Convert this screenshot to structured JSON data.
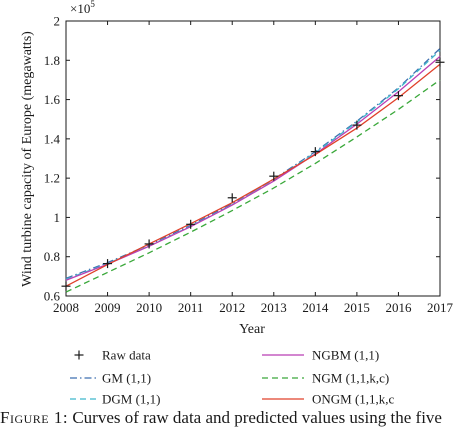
{
  "chart_data": {
    "type": "line",
    "xlabel": "Year",
    "ylabel": "Wind turbine capacity of Europe (megawatts)",
    "y_exponent_label": "×10",
    "y_exponent": "5",
    "xlim": [
      2008,
      2017
    ],
    "ylim": [
      0.6,
      2.0
    ],
    "y_scale_note": "values in units of 10^5 megawatts",
    "x_ticks": [
      "2008",
      "2009",
      "2010",
      "2011",
      "2012",
      "2013",
      "2014",
      "2015",
      "2016",
      "2017"
    ],
    "y_ticks": [
      "0.6",
      "0.8",
      "1",
      "1.2",
      "1.4",
      "1.6",
      "1.8",
      "2"
    ],
    "grid": false,
    "legend_position": "below",
    "x": [
      2008,
      2009,
      2010,
      2011,
      2012,
      2013,
      2014,
      2015,
      2016,
      2017
    ],
    "series": [
      {
        "name": "Raw data",
        "style": "plus-marker",
        "color": "#1a1a1a",
        "values": [
          0.65,
          0.765,
          0.865,
          0.965,
          1.1,
          1.21,
          1.335,
          1.47,
          1.62,
          1.79
        ]
      },
      {
        "name": "GM (1,1)",
        "style": "dash-dot",
        "color": "#3f6fb0",
        "values": [
          0.69,
          0.77,
          0.86,
          0.96,
          1.07,
          1.195,
          1.335,
          1.49,
          1.66,
          1.86
        ]
      },
      {
        "name": "DGM (1,1)",
        "style": "dashed",
        "color": "#3fb8cc",
        "values": [
          0.685,
          0.765,
          0.855,
          0.955,
          1.065,
          1.19,
          1.33,
          1.485,
          1.655,
          1.85
        ]
      },
      {
        "name": "NGBM (1,1)",
        "style": "solid",
        "color": "#b93fb5",
        "values": [
          0.68,
          0.762,
          0.853,
          0.953,
          1.063,
          1.185,
          1.323,
          1.475,
          1.64,
          1.82
        ]
      },
      {
        "name": "NGM (1,1,k,c)",
        "style": "dashed",
        "color": "#3aa83a",
        "values": [
          0.62,
          0.72,
          0.82,
          0.925,
          1.035,
          1.15,
          1.275,
          1.41,
          1.55,
          1.7
        ]
      },
      {
        "name": "ONGM (1,1,k,c",
        "style": "solid",
        "color": "#e0402a",
        "values": [
          0.65,
          0.76,
          0.865,
          0.968,
          1.075,
          1.195,
          1.32,
          1.455,
          1.61,
          1.78
        ]
      }
    ]
  },
  "caption": {
    "label": "Figure 1:",
    "text": " Curves of raw data and predicted values using the five"
  }
}
